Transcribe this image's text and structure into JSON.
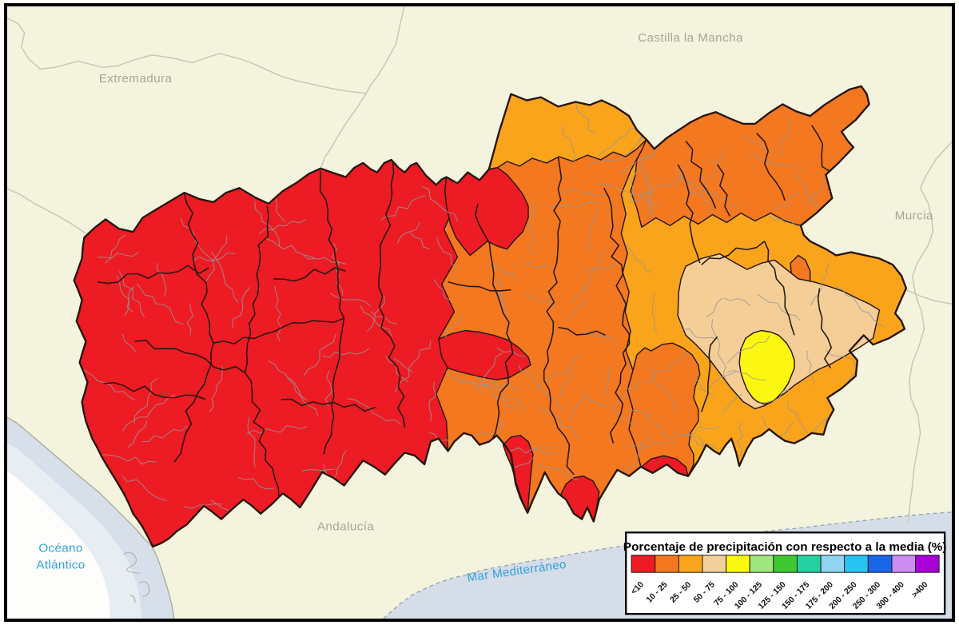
{
  "map": {
    "region_labels": [
      {
        "id": "extremadura",
        "text": "Extremadura"
      },
      {
        "id": "castilla-la-mancha",
        "text": "Castilla la Mancha"
      },
      {
        "id": "murcia",
        "text": "Murcia"
      },
      {
        "id": "andalucia",
        "text": "Andalucía"
      }
    ],
    "sea_labels": [
      {
        "id": "oceano-atlantico",
        "lines": [
          "Océano",
          "Atlántico"
        ]
      },
      {
        "id": "mar-mediterraneo",
        "text": "Mar Mediterráneo"
      }
    ],
    "basin_classes": [
      {
        "area": "western basin",
        "value": "<10"
      },
      {
        "area": "central basin",
        "value": "10 - 25"
      },
      {
        "area": "northern strip and northeastern band",
        "value": "25 - 50 with 10 - 25 band"
      },
      {
        "area": "eastern basin",
        "value": "25 - 50"
      },
      {
        "area": "eastern headwaters cluster",
        "value": "50 - 75"
      },
      {
        "area": "single eastern subbasin",
        "value": "75 - 100"
      }
    ]
  },
  "legend": {
    "title": "Porcentaje de precipitación con respecto a la media (%)",
    "classes": [
      {
        "label": "<10",
        "color": "#ED1B24"
      },
      {
        "label": "10 - 25",
        "color": "#F4781F"
      },
      {
        "label": "25 - 50",
        "color": "#FAA41C"
      },
      {
        "label": "50 - 75",
        "color": "#F2CF9D"
      },
      {
        "label": "75 - 100",
        "color": "#FBF711"
      },
      {
        "label": "100 - 125",
        "color": "#A0E67F"
      },
      {
        "label": "125 - 150",
        "color": "#3FC832"
      },
      {
        "label": "150 - 175",
        "color": "#26D0A0"
      },
      {
        "label": "175 - 200",
        "color": "#90D4F2"
      },
      {
        "label": "200 - 250",
        "color": "#29C3F2"
      },
      {
        "label": "250 - 300",
        "color": "#1A66E8"
      },
      {
        "label": "300 - 400",
        "color": "#CC8DF2"
      },
      {
        "label": ">400",
        "color": "#A800D6"
      }
    ]
  },
  "palette": {
    "land": "#F3F3DE",
    "ocean_white": "#FDFDFB",
    "ocean_band": "#D7DFEA",
    "ocean_band2": "#E8EDF4",
    "sea": "#D5DDE8",
    "admin_line": "#C8C8B2",
    "coast_line": "#ABAB9C",
    "region_label": "#A7A79B",
    "sea_label": "#2FA2DF",
    "boundary_dark": "#241810",
    "stream_gray": "#969696",
    "c1": "#ED1B24",
    "c2": "#F4781F",
    "c3": "#FAA41C",
    "c4": "#F5CE97",
    "c5": "#FBF711"
  }
}
